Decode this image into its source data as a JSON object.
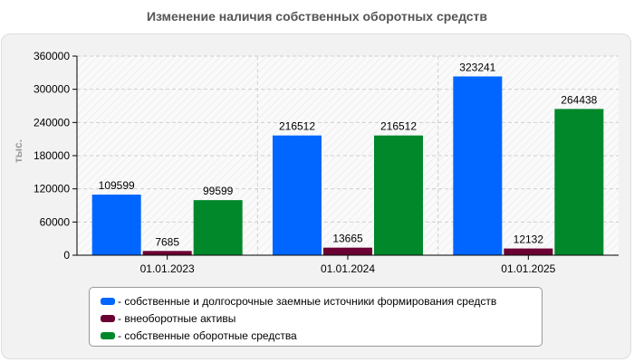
{
  "chart_data": {
    "type": "bar",
    "title": "Изменение наличия собственных оборотных средств",
    "ylabel": "тыс.",
    "xlabel": "",
    "categories": [
      "01.01.2023",
      "01.01.2024",
      "01.01.2025"
    ],
    "ylim": [
      0,
      360000
    ],
    "yticks": [
      0,
      60000,
      120000,
      180000,
      240000,
      300000,
      360000
    ],
    "grid": true,
    "legend_position": "bottom",
    "series": [
      {
        "name": "- собственные и долгосрочные заемные источники формирования средств",
        "color": "#0066ff",
        "values": [
          109599,
          216512,
          323241
        ]
      },
      {
        "name": "- внеоборотные активы",
        "color": "#6b0033",
        "values": [
          7685,
          13665,
          12132
        ]
      },
      {
        "name": "- собственные оборотные средства",
        "color": "#00882b",
        "values": [
          99599,
          216512,
          264438
        ]
      }
    ]
  }
}
